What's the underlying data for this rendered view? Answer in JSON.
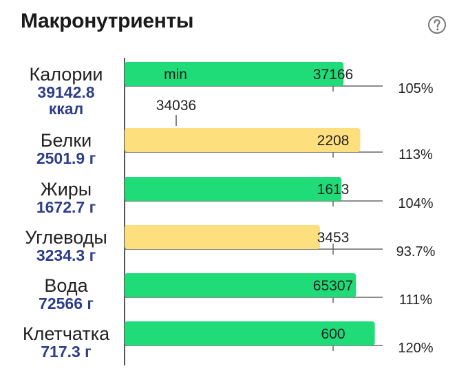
{
  "header": {
    "title": "Макронутриенты",
    "help_icon": "question-circle-icon"
  },
  "chart_data": {
    "type": "bar",
    "orientation": "horizontal",
    "categories": [
      {
        "name": "Калории",
        "value_lines": [
          "39142.8",
          "ккал"
        ]
      },
      {
        "name": "Белки",
        "value_lines": [
          "2501.9 г"
        ]
      },
      {
        "name": "Жиры",
        "value_lines": [
          "1672.7 г"
        ]
      },
      {
        "name": "Углеводы",
        "value_lines": [
          "3234.3 г"
        ]
      },
      {
        "name": "Вода",
        "value_lines": [
          "72566 г"
        ]
      },
      {
        "name": "Клетчатка",
        "value_lines": [
          "717.3 г"
        ]
      }
    ],
    "targets": [
      37166,
      2208,
      1613,
      3453,
      65307,
      600
    ],
    "percent_labels": [
      "105%",
      "113%",
      "104%",
      "93.7%",
      "111%",
      "120%"
    ],
    "percent_values": [
      105,
      113,
      104,
      93.7,
      111,
      120
    ],
    "bar_colors": [
      "#1fdc78",
      "#fddf7e",
      "#1fdc78",
      "#fddf7e",
      "#1fdc78",
      "#1fdc78"
    ],
    "min_marker": {
      "label": "min",
      "value": 34036
    },
    "colors": {
      "good": "#1fdc78",
      "warn": "#fddf7e",
      "axis": "#555555",
      "value_text": "#2d3f8a"
    }
  }
}
